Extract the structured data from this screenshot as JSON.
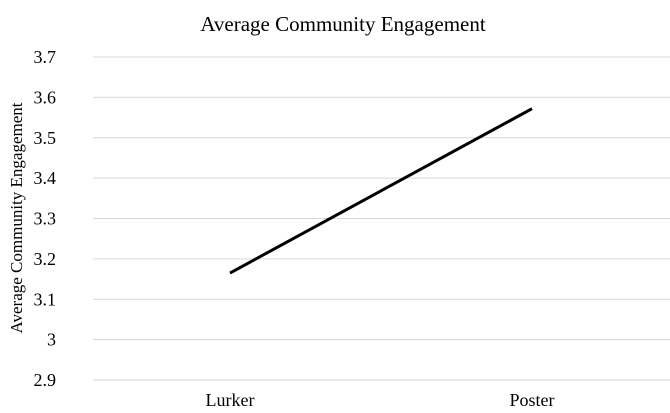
{
  "chart_data": {
    "type": "line",
    "title": "Average Community Engagement",
    "xlabel": "",
    "ylabel": "Average Community Engagement",
    "categories": [
      "Lurker",
      "Poster"
    ],
    "series": [
      {
        "values": [
          3.165,
          3.572
        ]
      }
    ],
    "ylim": [
      2.9,
      3.7
    ],
    "yticks": [
      "3.7",
      "3.6",
      "3.5",
      "3.4",
      "3.3",
      "3.2",
      "3.1",
      "3",
      "2.9"
    ],
    "grid": true,
    "legend": "none",
    "colors": {
      "line": "#000000",
      "grid": "#d9d9d9"
    }
  }
}
